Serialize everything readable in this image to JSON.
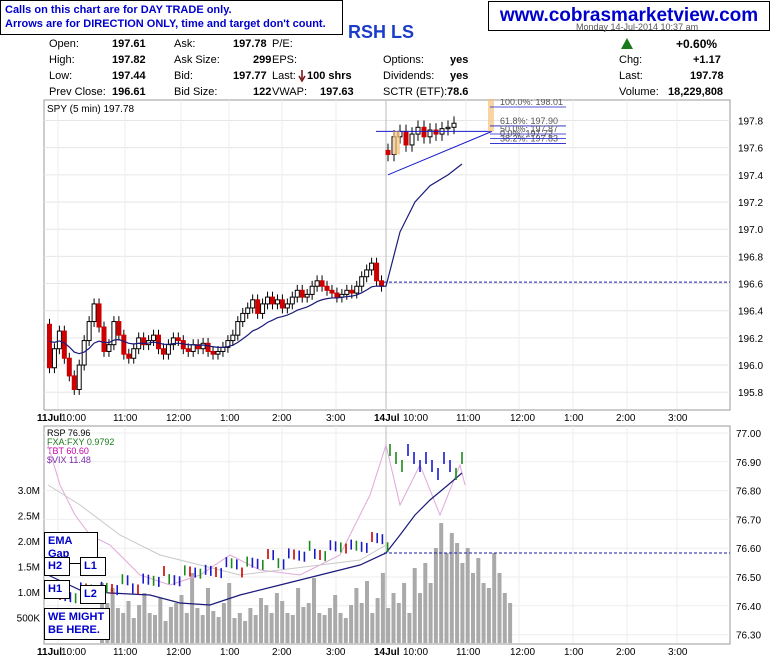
{
  "notice": {
    "line1": "Calls on this chart are for DAY TRADE only.",
    "line2": "Arrows are for DIRECTION ONLY, time and target don't count."
  },
  "site": "www.cobrasmarketview.com",
  "header": {
    "title_fragment": "RSH LS",
    "datetime": "Monday 14-Jul-2014 10:37 am"
  },
  "quote": {
    "open": {
      "label": "Open:",
      "value": "197.61"
    },
    "high": {
      "label": "High:",
      "value": "197.82"
    },
    "low": {
      "label": "Low:",
      "value": "197.44"
    },
    "prev_close": {
      "label": "Prev Close:",
      "value": "196.61"
    },
    "ask": {
      "label": "Ask:",
      "value": "197.78"
    },
    "ask_size": {
      "label": "Ask Size:",
      "value": "299"
    },
    "bid": {
      "label": "Bid:",
      "value": "197.77"
    },
    "bid_size": {
      "label": "Bid Size:",
      "value": "122"
    },
    "pe": {
      "label": "P/E:",
      "value": ""
    },
    "eps": {
      "label": "EPS:",
      "value": ""
    },
    "last_trade": {
      "label": "Last:",
      "value": "100 shrs"
    },
    "vwap": {
      "label": "VWAP:",
      "value": "197.63"
    },
    "options": {
      "label": "Options:",
      "value": "yes"
    },
    "dividends": {
      "label": "Dividends:",
      "value": "yes"
    },
    "sctr": {
      "label": "SCTR (ETF):",
      "value": "78.6"
    },
    "pct": {
      "value": "+0.60%"
    },
    "chg": {
      "label": "Chg:",
      "value": "+1.17"
    },
    "last": {
      "label": "Last:",
      "value": "197.78"
    },
    "volume": {
      "label": "Volume:",
      "value": "18,229,808"
    }
  },
  "colors": {
    "up": "#1a8a1a",
    "down": "#cc0000",
    "blue": "#1a1acc",
    "ema": "#1a1a7a",
    "callout": "#0000cc"
  },
  "chart_data": [
    {
      "type": "candlestick",
      "title": "SPY (5 min) 197.78",
      "y_ticks": [
        "197.8",
        "197.6",
        "197.4",
        "197.2",
        "197.0",
        "196.8",
        "196.6",
        "196.4",
        "196.2",
        "196.0",
        "195.8"
      ],
      "ylim": [
        195.75,
        197.87
      ],
      "x_ticks": [
        "11Jul",
        "10:00",
        "11:00",
        "12:00",
        "1:00",
        "2:00",
        "3:00",
        "14Jul",
        "10:00",
        "11:00",
        "12:00",
        "1:00",
        "2:00",
        "3:00"
      ],
      "prev_close_line": 196.61,
      "fib_levels": [
        {
          "label": "100.0%: 198.01",
          "value": 198.01
        },
        {
          "label": "61.8%: 197.90",
          "value": 197.9
        },
        {
          "label": "50.0%: 197.87",
          "value": 197.87
        },
        {
          "label": "38.2%: 197.83",
          "value": 197.83
        },
        {
          "label": "0.0%: 197.72",
          "value": 197.72
        }
      ],
      "session1_close": [
        195.98,
        196.12,
        196.25,
        196.05,
        195.92,
        195.82,
        196.0,
        196.18,
        196.32,
        196.45,
        196.28,
        196.1,
        196.15,
        196.32,
        196.22,
        196.08,
        196.05,
        196.12,
        196.2,
        196.15,
        196.18,
        196.22,
        196.12,
        196.08,
        196.15,
        196.2,
        196.18,
        196.12,
        196.1,
        196.15,
        196.12,
        196.16,
        196.1,
        196.08,
        196.1,
        196.13,
        196.18,
        196.22,
        196.32,
        196.38,
        196.42,
        196.48,
        196.38,
        196.45,
        196.5,
        196.45,
        196.48,
        196.42,
        196.45,
        196.5,
        196.55,
        196.5,
        196.52,
        196.58,
        196.62,
        196.58,
        196.55,
        196.53,
        196.5,
        196.52,
        196.55,
        196.53,
        196.58,
        196.65,
        196.7,
        196.75,
        196.62,
        196.58
      ],
      "session2_close": [
        197.55,
        197.68,
        197.72,
        197.62,
        197.7,
        197.75,
        197.68,
        197.73,
        197.7,
        197.74,
        197.75,
        197.78
      ]
    },
    {
      "type": "line",
      "title": "RSP 76.96",
      "series": [
        {
          "name": "FXA:FXY 0.9792"
        },
        {
          "name": "TBT 60.60"
        },
        {
          "name": "$VIX 11.48"
        }
      ],
      "y_ticks_right": [
        "77.00",
        "76.90",
        "76.80",
        "76.70",
        "76.60",
        "76.50",
        "76.40",
        "76.30"
      ],
      "y_ticks_left": [
        "3.0M",
        "2.5M",
        "2.0M",
        "1.5M",
        "1.0M",
        "500K"
      ],
      "x_ticks": [
        "11Jul",
        "10:00",
        "11:00",
        "12:00",
        "1:00",
        "2:00",
        "3:00",
        "14Jul",
        "10:00",
        "11:00",
        "12:00",
        "1:00",
        "2:00",
        "3:00"
      ]
    }
  ],
  "callouts": {
    "ema_gap": "EMA Gap",
    "h2": "H2",
    "l1": "L1",
    "h1": "H1",
    "l2": "L2",
    "might": "WE MIGHT BE HERE."
  }
}
